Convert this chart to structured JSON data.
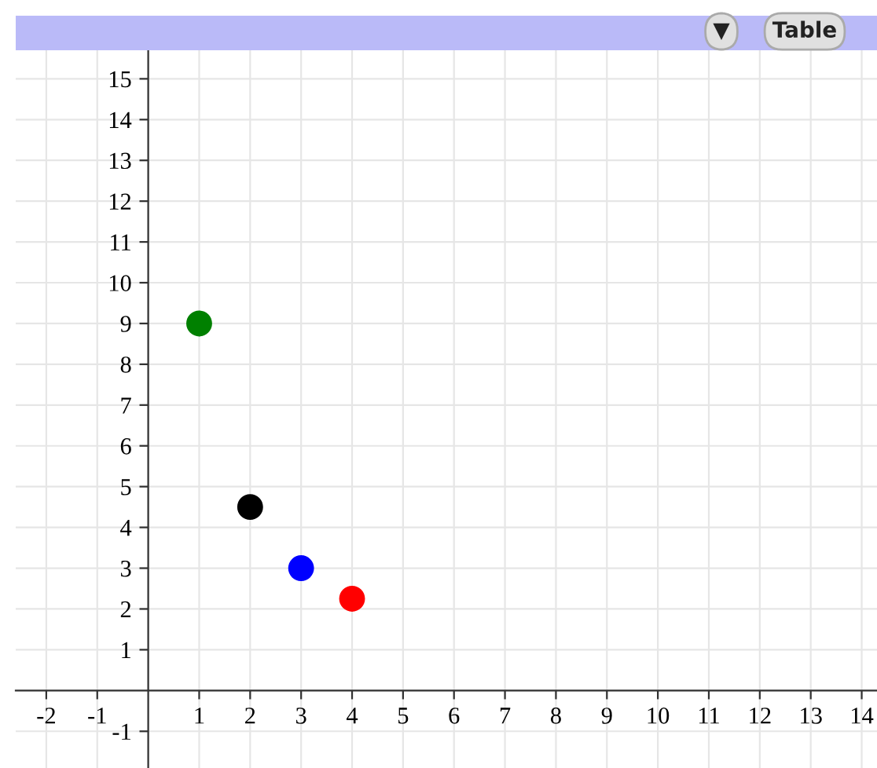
{
  "chart_data": {
    "type": "scatter",
    "x": [
      1,
      2,
      3,
      4
    ],
    "values": [
      9,
      4.5,
      3,
      2.25
    ],
    "colors": [
      "#008000",
      "#000000",
      "#0000ff",
      "#ff0000"
    ],
    "xlim": [
      -2.6,
      14.3
    ],
    "ylim": [
      -1.9,
      15.7
    ],
    "xticks": [
      -2,
      -1,
      1,
      2,
      3,
      4,
      5,
      6,
      7,
      8,
      9,
      10,
      11,
      12,
      13,
      14
    ],
    "yticks": [
      -1,
      1,
      2,
      3,
      4,
      5,
      6,
      7,
      8,
      9,
      10,
      11,
      12,
      13,
      14,
      15
    ],
    "grid": true,
    "marker": "circle",
    "annotations": [
      "▼",
      "Table"
    ]
  }
}
